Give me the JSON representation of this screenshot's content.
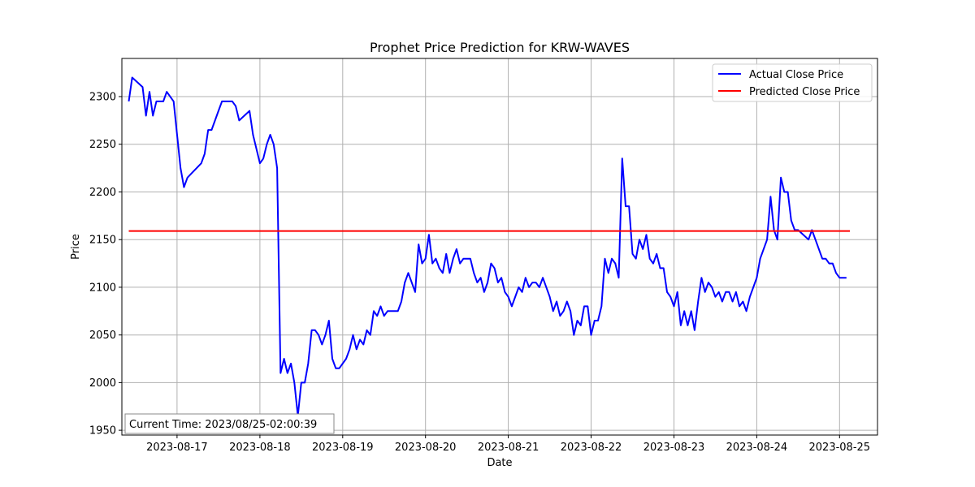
{
  "chart_data": {
    "type": "line",
    "title": "Prophet Price Prediction for KRW-WAVES",
    "xlabel": "Date",
    "ylabel": "Price",
    "xlim": [
      "2023-08-16T08:00",
      "2023-08-25T11:00"
    ],
    "ylim": [
      1945,
      2340
    ],
    "x_ticks": [
      "2023-08-17",
      "2023-08-18",
      "2023-08-19",
      "2023-08-20",
      "2023-08-21",
      "2023-08-22",
      "2023-08-23",
      "2023-08-24",
      "2023-08-25"
    ],
    "y_ticks": [
      1950,
      2000,
      2050,
      2100,
      2150,
      2200,
      2250,
      2300
    ],
    "grid": true,
    "legend_position": "top-right",
    "legend": [
      "Actual Close Price",
      "Predicted Close Price"
    ],
    "series": [
      {
        "name": "Actual Close Price",
        "color": "#0000ff",
        "points": [
          [
            "2023-08-16T10:00",
            2295
          ],
          [
            "2023-08-16T11:00",
            2320
          ],
          [
            "2023-08-16T14:00",
            2310
          ],
          [
            "2023-08-16T15:00",
            2280
          ],
          [
            "2023-08-16T16:00",
            2305
          ],
          [
            "2023-08-16T17:00",
            2280
          ],
          [
            "2023-08-16T18:00",
            2295
          ],
          [
            "2023-08-16T20:00",
            2295
          ],
          [
            "2023-08-16T21:00",
            2305
          ],
          [
            "2023-08-16T23:00",
            2295
          ],
          [
            "2023-08-17T01:00",
            2225
          ],
          [
            "2023-08-17T02:00",
            2205
          ],
          [
            "2023-08-17T03:00",
            2215
          ],
          [
            "2023-08-17T07:00",
            2230
          ],
          [
            "2023-08-17T08:00",
            2240
          ],
          [
            "2023-08-17T09:00",
            2265
          ],
          [
            "2023-08-17T10:00",
            2265
          ],
          [
            "2023-08-17T12:00",
            2285
          ],
          [
            "2023-08-17T13:00",
            2295
          ],
          [
            "2023-08-17T16:00",
            2295
          ],
          [
            "2023-08-17T17:00",
            2290
          ],
          [
            "2023-08-17T18:00",
            2275
          ],
          [
            "2023-08-17T21:00",
            2285
          ],
          [
            "2023-08-17T22:00",
            2260
          ],
          [
            "2023-08-18T00:00",
            2230
          ],
          [
            "2023-08-18T01:00",
            2235
          ],
          [
            "2023-08-18T02:00",
            2250
          ],
          [
            "2023-08-18T03:00",
            2260
          ],
          [
            "2023-08-18T04:00",
            2250
          ],
          [
            "2023-08-18T05:00",
            2225
          ],
          [
            "2023-08-18T06:00",
            2010
          ],
          [
            "2023-08-18T07:00",
            2025
          ],
          [
            "2023-08-18T08:00",
            2010
          ],
          [
            "2023-08-18T09:00",
            2020
          ],
          [
            "2023-08-18T10:00",
            2000
          ],
          [
            "2023-08-18T11:00",
            1965
          ],
          [
            "2023-08-18T12:00",
            2000
          ],
          [
            "2023-08-18T13:00",
            2000
          ],
          [
            "2023-08-18T14:00",
            2020
          ],
          [
            "2023-08-18T15:00",
            2055
          ],
          [
            "2023-08-18T16:00",
            2055
          ],
          [
            "2023-08-18T17:00",
            2050
          ],
          [
            "2023-08-18T18:00",
            2040
          ],
          [
            "2023-08-18T19:00",
            2050
          ],
          [
            "2023-08-18T20:00",
            2065
          ],
          [
            "2023-08-18T21:00",
            2025
          ],
          [
            "2023-08-18T22:00",
            2015
          ],
          [
            "2023-08-18T23:00",
            2015
          ],
          [
            "2023-08-19T01:00",
            2025
          ],
          [
            "2023-08-19T02:00",
            2035
          ],
          [
            "2023-08-19T03:00",
            2050
          ],
          [
            "2023-08-19T04:00",
            2035
          ],
          [
            "2023-08-19T05:00",
            2045
          ],
          [
            "2023-08-19T06:00",
            2040
          ],
          [
            "2023-08-19T07:00",
            2055
          ],
          [
            "2023-08-19T08:00",
            2050
          ],
          [
            "2023-08-19T09:00",
            2075
          ],
          [
            "2023-08-19T10:00",
            2070
          ],
          [
            "2023-08-19T11:00",
            2080
          ],
          [
            "2023-08-19T12:00",
            2070
          ],
          [
            "2023-08-19T13:00",
            2075
          ],
          [
            "2023-08-19T16:00",
            2075
          ],
          [
            "2023-08-19T17:00",
            2085
          ],
          [
            "2023-08-19T18:00",
            2105
          ],
          [
            "2023-08-19T19:00",
            2115
          ],
          [
            "2023-08-19T21:00",
            2095
          ],
          [
            "2023-08-19T22:00",
            2145
          ],
          [
            "2023-08-19T23:00",
            2125
          ],
          [
            "2023-08-20T00:00",
            2130
          ],
          [
            "2023-08-20T01:00",
            2155
          ],
          [
            "2023-08-20T02:00",
            2125
          ],
          [
            "2023-08-20T03:00",
            2130
          ],
          [
            "2023-08-20T04:00",
            2120
          ],
          [
            "2023-08-20T05:00",
            2115
          ],
          [
            "2023-08-20T06:00",
            2135
          ],
          [
            "2023-08-20T07:00",
            2115
          ],
          [
            "2023-08-20T08:00",
            2130
          ],
          [
            "2023-08-20T09:00",
            2140
          ],
          [
            "2023-08-20T10:00",
            2125
          ],
          [
            "2023-08-20T11:00",
            2130
          ],
          [
            "2023-08-20T13:00",
            2130
          ],
          [
            "2023-08-20T14:00",
            2115
          ],
          [
            "2023-08-20T15:00",
            2105
          ],
          [
            "2023-08-20T16:00",
            2110
          ],
          [
            "2023-08-20T17:00",
            2095
          ],
          [
            "2023-08-20T18:00",
            2105
          ],
          [
            "2023-08-20T19:00",
            2125
          ],
          [
            "2023-08-20T20:00",
            2120
          ],
          [
            "2023-08-20T21:00",
            2105
          ],
          [
            "2023-08-20T22:00",
            2110
          ],
          [
            "2023-08-20T23:00",
            2095
          ],
          [
            "2023-08-21T00:00",
            2090
          ],
          [
            "2023-08-21T01:00",
            2080
          ],
          [
            "2023-08-21T03:00",
            2100
          ],
          [
            "2023-08-21T04:00",
            2095
          ],
          [
            "2023-08-21T05:00",
            2110
          ],
          [
            "2023-08-21T06:00",
            2100
          ],
          [
            "2023-08-21T07:00",
            2105
          ],
          [
            "2023-08-21T08:00",
            2105
          ],
          [
            "2023-08-21T09:00",
            2100
          ],
          [
            "2023-08-21T10:00",
            2110
          ],
          [
            "2023-08-21T12:00",
            2090
          ],
          [
            "2023-08-21T13:00",
            2075
          ],
          [
            "2023-08-21T14:00",
            2085
          ],
          [
            "2023-08-21T15:00",
            2070
          ],
          [
            "2023-08-21T16:00",
            2075
          ],
          [
            "2023-08-21T17:00",
            2085
          ],
          [
            "2023-08-21T18:00",
            2075
          ],
          [
            "2023-08-21T19:00",
            2050
          ],
          [
            "2023-08-21T20:00",
            2065
          ],
          [
            "2023-08-21T21:00",
            2060
          ],
          [
            "2023-08-21T22:00",
            2080
          ],
          [
            "2023-08-21T23:00",
            2080
          ],
          [
            "2023-08-22T00:00",
            2050
          ],
          [
            "2023-08-22T01:00",
            2065
          ],
          [
            "2023-08-22T02:00",
            2065
          ],
          [
            "2023-08-22T03:00",
            2080
          ],
          [
            "2023-08-22T04:00",
            2130
          ],
          [
            "2023-08-22T05:00",
            2115
          ],
          [
            "2023-08-22T06:00",
            2130
          ],
          [
            "2023-08-22T07:00",
            2125
          ],
          [
            "2023-08-22T08:00",
            2110
          ],
          [
            "2023-08-22T09:00",
            2235
          ],
          [
            "2023-08-22T10:00",
            2185
          ],
          [
            "2023-08-22T11:00",
            2185
          ],
          [
            "2023-08-22T12:00",
            2135
          ],
          [
            "2023-08-22T13:00",
            2130
          ],
          [
            "2023-08-22T14:00",
            2150
          ],
          [
            "2023-08-22T15:00",
            2140
          ],
          [
            "2023-08-22T16:00",
            2155
          ],
          [
            "2023-08-22T17:00",
            2130
          ],
          [
            "2023-08-22T18:00",
            2125
          ],
          [
            "2023-08-22T19:00",
            2135
          ],
          [
            "2023-08-22T20:00",
            2120
          ],
          [
            "2023-08-22T21:00",
            2120
          ],
          [
            "2023-08-22T22:00",
            2095
          ],
          [
            "2023-08-22T23:00",
            2090
          ],
          [
            "2023-08-23T00:00",
            2080
          ],
          [
            "2023-08-23T01:00",
            2095
          ],
          [
            "2023-08-23T02:00",
            2060
          ],
          [
            "2023-08-23T03:00",
            2075
          ],
          [
            "2023-08-23T04:00",
            2060
          ],
          [
            "2023-08-23T05:00",
            2075
          ],
          [
            "2023-08-23T06:00",
            2055
          ],
          [
            "2023-08-23T07:00",
            2085
          ],
          [
            "2023-08-23T08:00",
            2110
          ],
          [
            "2023-08-23T09:00",
            2095
          ],
          [
            "2023-08-23T10:00",
            2105
          ],
          [
            "2023-08-23T11:00",
            2100
          ],
          [
            "2023-08-23T12:00",
            2090
          ],
          [
            "2023-08-23T13:00",
            2095
          ],
          [
            "2023-08-23T14:00",
            2085
          ],
          [
            "2023-08-23T15:00",
            2095
          ],
          [
            "2023-08-23T16:00",
            2095
          ],
          [
            "2023-08-23T17:00",
            2085
          ],
          [
            "2023-08-23T18:00",
            2095
          ],
          [
            "2023-08-23T19:00",
            2080
          ],
          [
            "2023-08-23T20:00",
            2085
          ],
          [
            "2023-08-23T21:00",
            2075
          ],
          [
            "2023-08-23T22:00",
            2090
          ],
          [
            "2023-08-24T00:00",
            2110
          ],
          [
            "2023-08-24T01:00",
            2130
          ],
          [
            "2023-08-24T03:00",
            2150
          ],
          [
            "2023-08-24T04:00",
            2195
          ],
          [
            "2023-08-24T05:00",
            2160
          ],
          [
            "2023-08-24T06:00",
            2150
          ],
          [
            "2023-08-24T07:00",
            2215
          ],
          [
            "2023-08-24T08:00",
            2200
          ],
          [
            "2023-08-24T09:00",
            2200
          ],
          [
            "2023-08-24T10:00",
            2170
          ],
          [
            "2023-08-24T11:00",
            2160
          ],
          [
            "2023-08-24T12:00",
            2160
          ],
          [
            "2023-08-24T15:00",
            2150
          ],
          [
            "2023-08-24T16:00",
            2160
          ],
          [
            "2023-08-24T17:00",
            2150
          ],
          [
            "2023-08-24T19:00",
            2130
          ],
          [
            "2023-08-24T20:00",
            2130
          ],
          [
            "2023-08-24T21:00",
            2125
          ],
          [
            "2023-08-24T22:00",
            2125
          ],
          [
            "2023-08-24T23:00",
            2115
          ],
          [
            "2023-08-25T00:00",
            2110
          ],
          [
            "2023-08-25T02:00",
            2110
          ]
        ]
      },
      {
        "name": "Predicted Close Price",
        "color": "#ff0000",
        "points": [
          [
            "2023-08-16T10:00",
            2159
          ],
          [
            "2023-08-25T03:00",
            2159
          ]
        ]
      }
    ],
    "annotation": "Current Time: 2023/08/25-02:00:39"
  }
}
